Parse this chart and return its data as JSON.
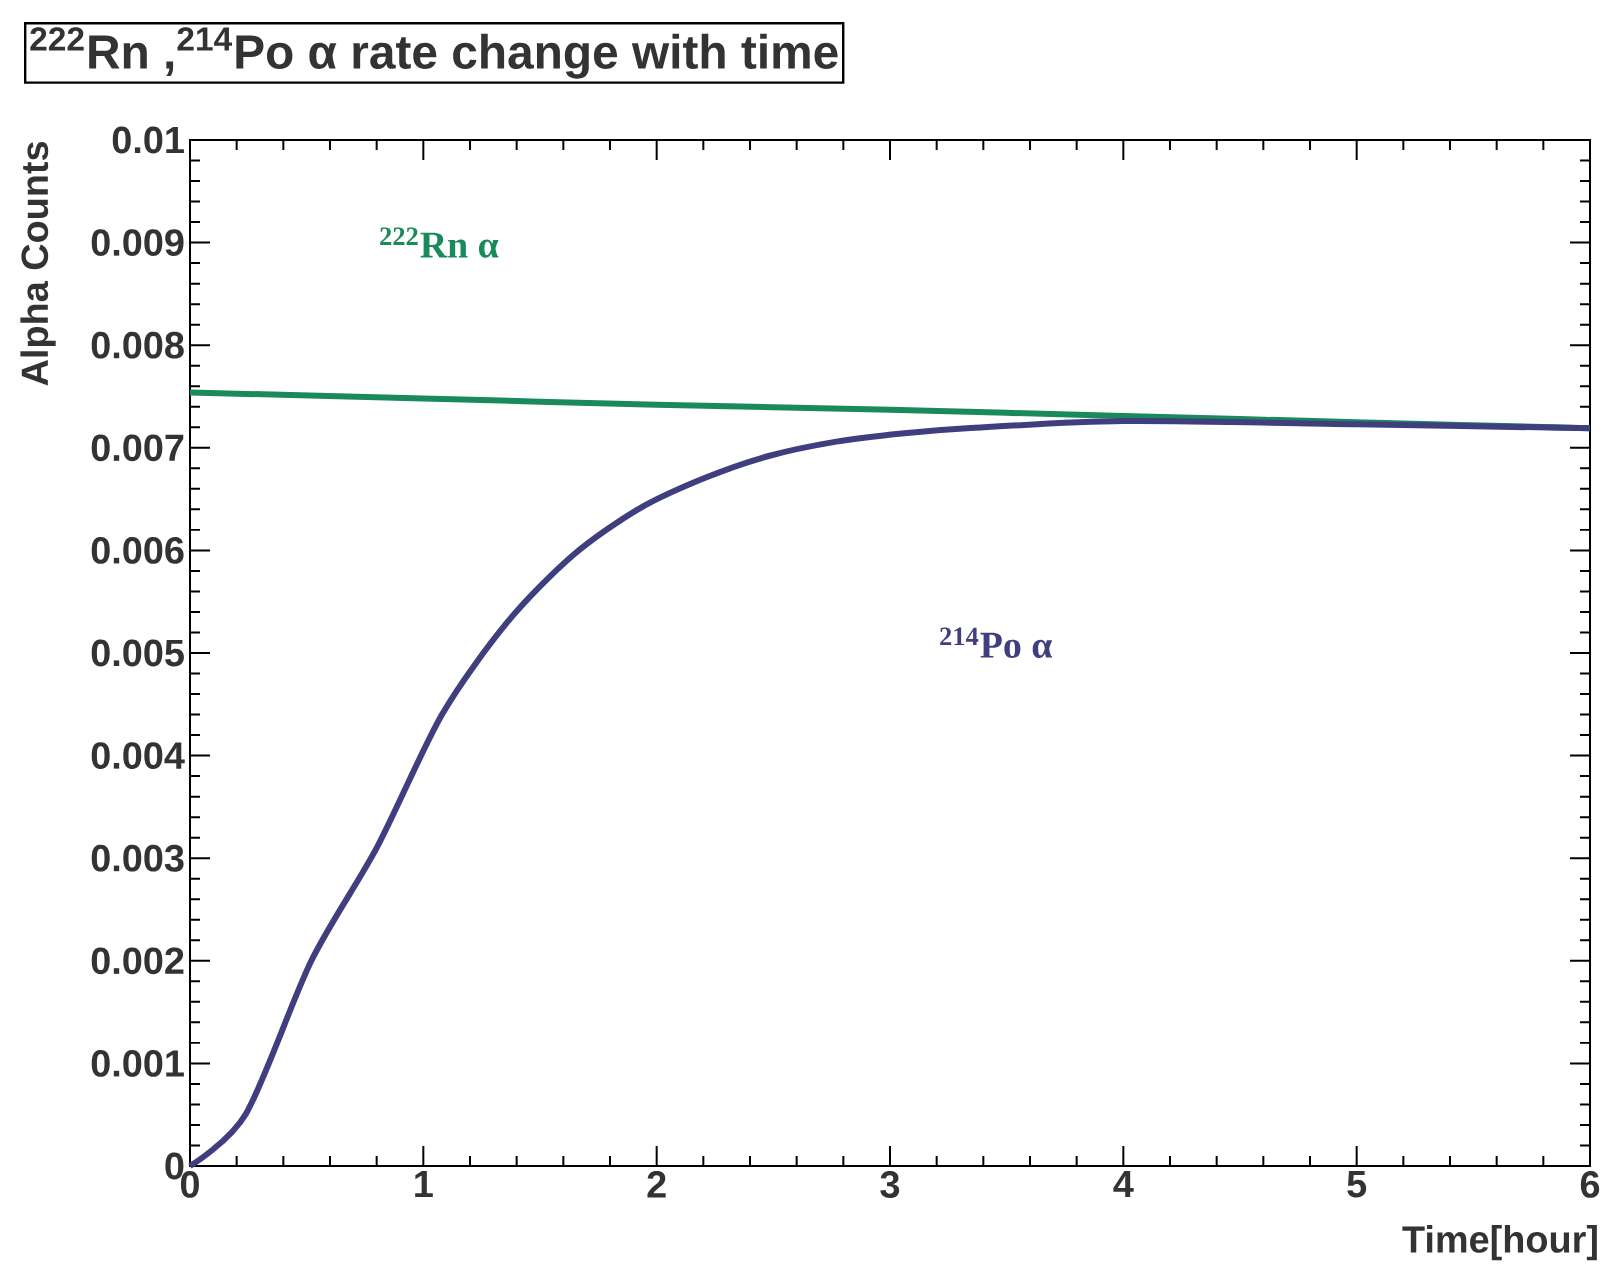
{
  "chart_data": {
    "type": "line",
    "title": "$^{222}$Rn ,$^{214}$Po α rate change with time",
    "xlabel": "Time[hour]",
    "ylabel": "Alpha Counts",
    "xlim": [
      0,
      6
    ],
    "ylim": [
      0,
      0.01
    ],
    "xticks": [
      0,
      1,
      2,
      3,
      4,
      5,
      6
    ],
    "yticks": [
      0,
      0.001,
      0.002,
      0.003,
      0.004,
      0.005,
      0.006,
      0.007,
      0.008,
      0.009,
      0.01
    ],
    "grid": false,
    "marker": "none",
    "line_style": "solid",
    "series": [
      {
        "name": "$^{222}$Rn α",
        "color": "#1a8a5a",
        "x": [
          0,
          1,
          2,
          3,
          4,
          5,
          6
        ],
        "values": [
          0.00754,
          0.00748,
          0.00742,
          0.00737,
          0.00731,
          0.00725,
          0.00719
        ]
      },
      {
        "name": "$^{214}$Po α",
        "color": "#3f3f80",
        "x": [
          0,
          0.24,
          0.52,
          0.8,
          1.08,
          1.36,
          1.64,
          1.92,
          2.2,
          2.48,
          2.77,
          3.05,
          3.33,
          4,
          5,
          6
        ],
        "values": [
          0,
          0.00051,
          0.002,
          0.0031,
          0.0044,
          0.0053,
          0.00595,
          0.0064,
          0.0067,
          0.00692,
          0.00706,
          0.00714,
          0.00719,
          0.00726,
          0.00723,
          0.00719
        ]
      }
    ]
  }
}
